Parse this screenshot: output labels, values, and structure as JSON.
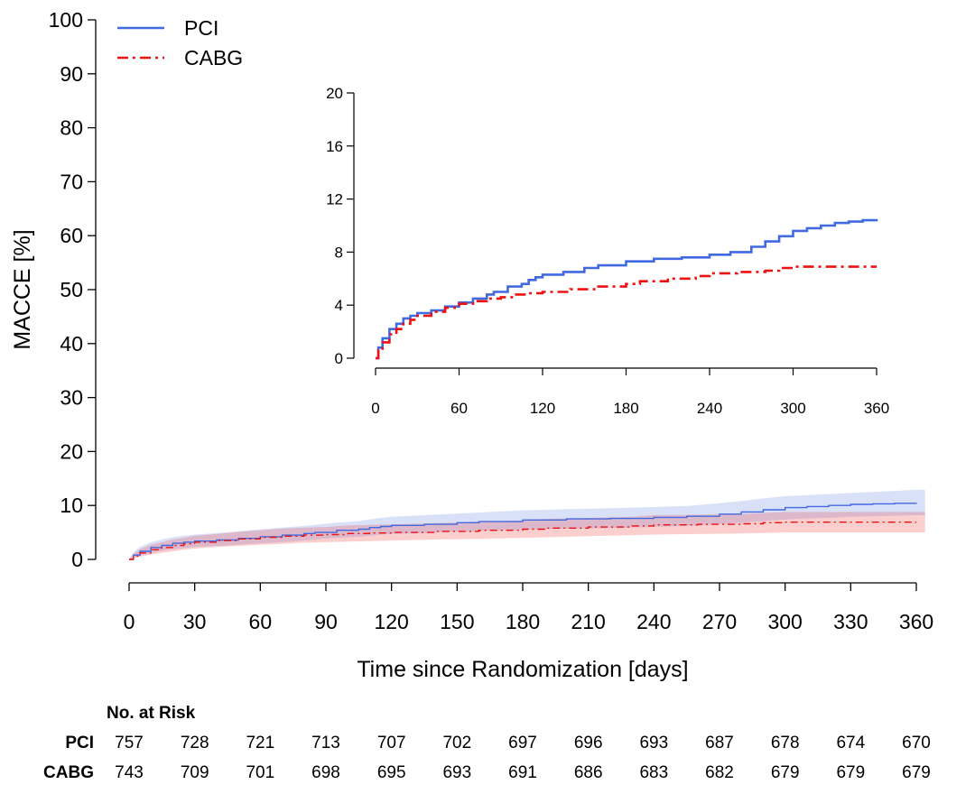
{
  "chart_data": [
    {
      "type": "line",
      "panel": "main",
      "xlabel": "Time since Randomization [days]",
      "ylabel": "MACCE [%]",
      "xlim": [
        0,
        360
      ],
      "ylim": [
        0,
        100
      ],
      "xticks": [
        0,
        30,
        60,
        90,
        120,
        150,
        180,
        210,
        240,
        270,
        300,
        330,
        360
      ],
      "yticks": [
        0,
        10,
        20,
        30,
        40,
        50,
        60,
        70,
        80,
        90,
        100
      ],
      "legend": {
        "placement": "top-left",
        "entries": [
          "PCI",
          "CABG"
        ]
      },
      "grid": false,
      "series": [
        {
          "name": "PCI",
          "color": "#4169E1",
          "line_style": "solid",
          "x": [
            0,
            2,
            5,
            10,
            15,
            20,
            25,
            30,
            40,
            50,
            60,
            70,
            80,
            85,
            95,
            105,
            110,
            115,
            120,
            135,
            150,
            160,
            180,
            200,
            220,
            240,
            255,
            270,
            280,
            290,
            300,
            310,
            320,
            330,
            340,
            350,
            360
          ],
          "values": [
            0,
            0.8,
            1.5,
            2.2,
            2.6,
            3.0,
            3.2,
            3.4,
            3.6,
            3.9,
            4.2,
            4.5,
            4.8,
            5.0,
            5.4,
            5.6,
            5.9,
            6.1,
            6.3,
            6.5,
            6.8,
            7.0,
            7.3,
            7.5,
            7.6,
            7.8,
            8.0,
            8.4,
            8.8,
            9.2,
            9.6,
            9.8,
            10.0,
            10.2,
            10.3,
            10.4,
            10.5
          ],
          "ci_lower": [
            0,
            0.3,
            0.7,
            1.2,
            1.6,
            1.9,
            2.1,
            2.3,
            2.5,
            2.7,
            3.0,
            3.2,
            3.5,
            3.7,
            4.0,
            4.2,
            4.4,
            4.6,
            4.7,
            4.9,
            5.2,
            5.3,
            5.5,
            5.7,
            5.8,
            6.0,
            6.2,
            6.5,
            6.8,
            7.1,
            7.4,
            7.6,
            7.7,
            7.9,
            8.0,
            8.1,
            8.2
          ],
          "ci_upper": [
            0,
            1.4,
            2.3,
            3.2,
            3.7,
            4.1,
            4.4,
            4.6,
            4.9,
            5.2,
            5.6,
            5.9,
            6.2,
            6.4,
            6.8,
            7.1,
            7.4,
            7.7,
            7.9,
            8.2,
            8.5,
            8.7,
            9.1,
            9.3,
            9.5,
            9.7,
            9.9,
            10.4,
            10.8,
            11.3,
            11.7,
            11.9,
            12.1,
            12.3,
            12.5,
            12.7,
            12.9
          ]
        },
        {
          "name": "CABG",
          "color": "#EE1111",
          "line_style": "dashdot",
          "x": [
            0,
            2,
            5,
            10,
            15,
            20,
            25,
            30,
            40,
            50,
            60,
            70,
            80,
            90,
            100,
            110,
            120,
            140,
            160,
            180,
            190,
            210,
            230,
            240,
            260,
            280,
            290,
            300,
            320,
            340,
            360
          ],
          "values": [
            0,
            0.6,
            1.2,
            1.8,
            2.2,
            2.6,
            2.9,
            3.2,
            3.5,
            3.8,
            4.1,
            4.3,
            4.5,
            4.6,
            4.8,
            4.9,
            5.0,
            5.2,
            5.4,
            5.6,
            5.8,
            6.0,
            6.2,
            6.4,
            6.5,
            6.6,
            6.8,
            6.9,
            6.9,
            6.9,
            6.9
          ],
          "ci_lower": [
            0,
            0.2,
            0.5,
            0.9,
            1.2,
            1.5,
            1.8,
            2.0,
            2.3,
            2.5,
            2.7,
            2.9,
            3.1,
            3.2,
            3.3,
            3.4,
            3.5,
            3.7,
            3.8,
            4.0,
            4.1,
            4.3,
            4.5,
            4.6,
            4.7,
            4.8,
            4.9,
            5.0,
            5.0,
            5.0,
            5.0
          ],
          "ci_upper": [
            0,
            1.0,
            1.9,
            2.7,
            3.2,
            3.7,
            4.0,
            4.4,
            4.7,
            5.1,
            5.4,
            5.7,
            5.9,
            6.0,
            6.3,
            6.4,
            6.5,
            6.7,
            7.0,
            7.2,
            7.5,
            7.7,
            7.9,
            8.2,
            8.3,
            8.4,
            8.6,
            8.8,
            8.8,
            8.8,
            8.8
          ]
        }
      ]
    },
    {
      "type": "line",
      "panel": "inset",
      "xlim": [
        0,
        360
      ],
      "ylim": [
        0,
        20
      ],
      "xticks": [
        0,
        60,
        120,
        180,
        240,
        300,
        360
      ],
      "yticks": [
        0,
        4,
        8,
        12,
        16,
        20
      ],
      "grid": false,
      "series": [
        {
          "name": "PCI",
          "color": "#4169E1",
          "line_style": "solid",
          "x": [
            0,
            2,
            5,
            10,
            15,
            20,
            25,
            30,
            40,
            50,
            60,
            70,
            80,
            85,
            95,
            105,
            110,
            115,
            120,
            135,
            150,
            160,
            180,
            200,
            220,
            240,
            255,
            270,
            280,
            290,
            300,
            310,
            320,
            330,
            340,
            350,
            360
          ],
          "values": [
            0,
            0.8,
            1.5,
            2.2,
            2.6,
            3.0,
            3.2,
            3.4,
            3.6,
            3.9,
            4.2,
            4.5,
            4.8,
            5.0,
            5.4,
            5.6,
            5.9,
            6.1,
            6.3,
            6.5,
            6.8,
            7.0,
            7.3,
            7.5,
            7.6,
            7.8,
            8.0,
            8.4,
            8.8,
            9.2,
            9.6,
            9.8,
            10.0,
            10.2,
            10.3,
            10.4,
            10.5
          ]
        },
        {
          "name": "CABG",
          "color": "#EE1111",
          "line_style": "dashdot",
          "x": [
            0,
            2,
            5,
            10,
            15,
            20,
            25,
            30,
            40,
            50,
            60,
            70,
            80,
            90,
            100,
            110,
            120,
            140,
            160,
            180,
            190,
            210,
            230,
            240,
            260,
            280,
            290,
            300,
            320,
            340,
            360
          ],
          "values": [
            0,
            0.6,
            1.2,
            1.8,
            2.2,
            2.6,
            2.9,
            3.2,
            3.5,
            3.8,
            4.1,
            4.3,
            4.5,
            4.6,
            4.8,
            4.9,
            5.0,
            5.2,
            5.4,
            5.6,
            5.8,
            6.0,
            6.2,
            6.4,
            6.5,
            6.6,
            6.8,
            6.9,
            6.9,
            6.9,
            6.9
          ]
        }
      ]
    }
  ],
  "risk_table": {
    "title": "No. at Risk",
    "times": [
      0,
      30,
      60,
      90,
      120,
      150,
      180,
      210,
      240,
      270,
      300,
      330,
      360
    ],
    "rows": [
      {
        "label": "PCI",
        "values": [
          757,
          728,
          721,
          713,
          707,
          702,
          697,
          696,
          693,
          687,
          678,
          674,
          670
        ]
      },
      {
        "label": "CABG",
        "values": [
          743,
          709,
          701,
          698,
          695,
          693,
          691,
          686,
          683,
          682,
          679,
          679,
          679
        ]
      }
    ]
  }
}
